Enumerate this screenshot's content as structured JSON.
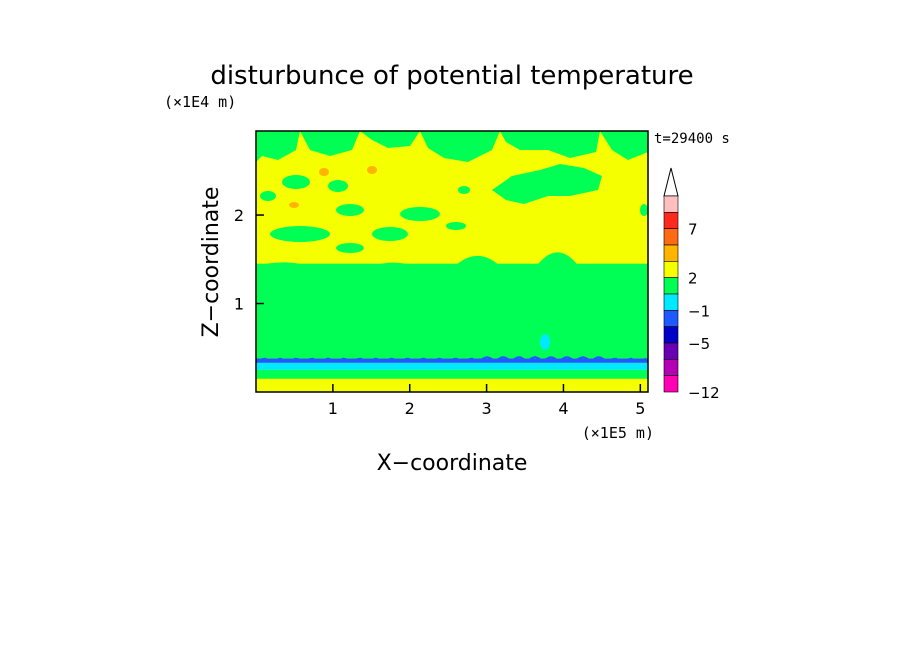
{
  "chart_data": {
    "type": "heatmap",
    "title": "disturbunce of potential temperature",
    "time_label": "t=29400 s",
    "xlabel": "X−coordinate",
    "ylabel": "Z−coordinate",
    "x_scale_label": "(×1E5 m)",
    "y_scale_label": "(×1E4 m)",
    "xlim": [
      0,
      5.1
    ],
    "ylim": [
      0,
      2.95
    ],
    "x_ticks": [
      "1",
      "2",
      "3",
      "4",
      "5"
    ],
    "y_ticks": [
      "1",
      "2"
    ],
    "x_tick_values": [
      1,
      2,
      3,
      4,
      5
    ],
    "y_tick_values": [
      1,
      2
    ],
    "colorbar": {
      "levels_labeled": [
        "7",
        "2",
        "−1",
        "−5",
        "−12"
      ],
      "colors_top_to_bottom": [
        "#ffbfbf",
        "#ff2a1e",
        "#ff6a14",
        "#ffb400",
        "#f5ff00",
        "#00ff55",
        "#00eaff",
        "#1e5aff",
        "#0000c8",
        "#6a00b4",
        "#b400b4",
        "#ff00b4"
      ],
      "extend": "max"
    },
    "field_description_layers": [
      {
        "z_from": 0.0,
        "z_to": 0.15,
        "color": "#f5ff00"
      },
      {
        "z_from": 0.15,
        "z_to": 0.25,
        "color": "#00ff55"
      },
      {
        "z_from": 0.25,
        "z_to": 0.33,
        "color": "#00eaff"
      },
      {
        "z_from": 0.33,
        "z_to": 0.38,
        "color": "#1e5aff"
      },
      {
        "z_from": 0.38,
        "z_to": 1.45,
        "color": "#00ff55"
      },
      {
        "z_from": 1.45,
        "z_to": 2.95,
        "color": "#f5ff00"
      }
    ]
  }
}
